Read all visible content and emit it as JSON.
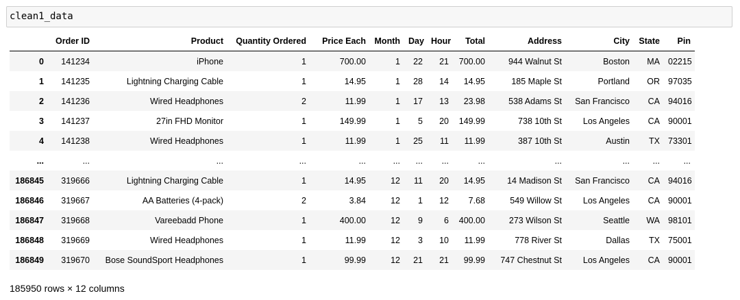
{
  "cell": {
    "code": "clean1_data"
  },
  "table": {
    "columns": [
      "",
      "Order ID",
      "Product",
      "Quantity Ordered",
      "Price Each",
      "Month",
      "Day",
      "Hour",
      "Total",
      "Address",
      "City",
      "State",
      "Pin"
    ],
    "rows": [
      [
        "0",
        "141234",
        "iPhone",
        "1",
        "700.00",
        "1",
        "22",
        "21",
        "700.00",
        "944 Walnut St",
        "Boston",
        "MA",
        "02215"
      ],
      [
        "1",
        "141235",
        "Lightning Charging Cable",
        "1",
        "14.95",
        "1",
        "28",
        "14",
        "14.95",
        "185 Maple St",
        "Portland",
        "OR",
        "97035"
      ],
      [
        "2",
        "141236",
        "Wired Headphones",
        "2",
        "11.99",
        "1",
        "17",
        "13",
        "23.98",
        "538 Adams St",
        "San Francisco",
        "CA",
        "94016"
      ],
      [
        "3",
        "141237",
        "27in FHD Monitor",
        "1",
        "149.99",
        "1",
        "5",
        "20",
        "149.99",
        "738 10th St",
        "Los Angeles",
        "CA",
        "90001"
      ],
      [
        "4",
        "141238",
        "Wired Headphones",
        "1",
        "11.99",
        "1",
        "25",
        "11",
        "11.99",
        "387 10th St",
        "Austin",
        "TX",
        "73301"
      ],
      [
        "...",
        "...",
        "...",
        "...",
        "...",
        "...",
        "...",
        "...",
        "...",
        "...",
        "...",
        "...",
        "..."
      ],
      [
        "186845",
        "319666",
        "Lightning Charging Cable",
        "1",
        "14.95",
        "12",
        "11",
        "20",
        "14.95",
        "14 Madison St",
        "San Francisco",
        "CA",
        "94016"
      ],
      [
        "186846",
        "319667",
        "AA Batteries (4-pack)",
        "2",
        "3.84",
        "12",
        "1",
        "12",
        "7.68",
        "549 Willow St",
        "Los Angeles",
        "CA",
        "90001"
      ],
      [
        "186847",
        "319668",
        "Vareebadd Phone",
        "1",
        "400.00",
        "12",
        "9",
        "6",
        "400.00",
        "273 Wilson St",
        "Seattle",
        "WA",
        "98101"
      ],
      [
        "186848",
        "319669",
        "Wired Headphones",
        "1",
        "11.99",
        "12",
        "3",
        "10",
        "11.99",
        "778 River St",
        "Dallas",
        "TX",
        "75001"
      ],
      [
        "186849",
        "319670",
        "Bose SoundSport Headphones",
        "1",
        "99.99",
        "12",
        "21",
        "21",
        "99.99",
        "747 Chestnut St",
        "Los Angeles",
        "CA",
        "90001"
      ]
    ]
  },
  "shape_text": "185950 rows × 12 columns"
}
